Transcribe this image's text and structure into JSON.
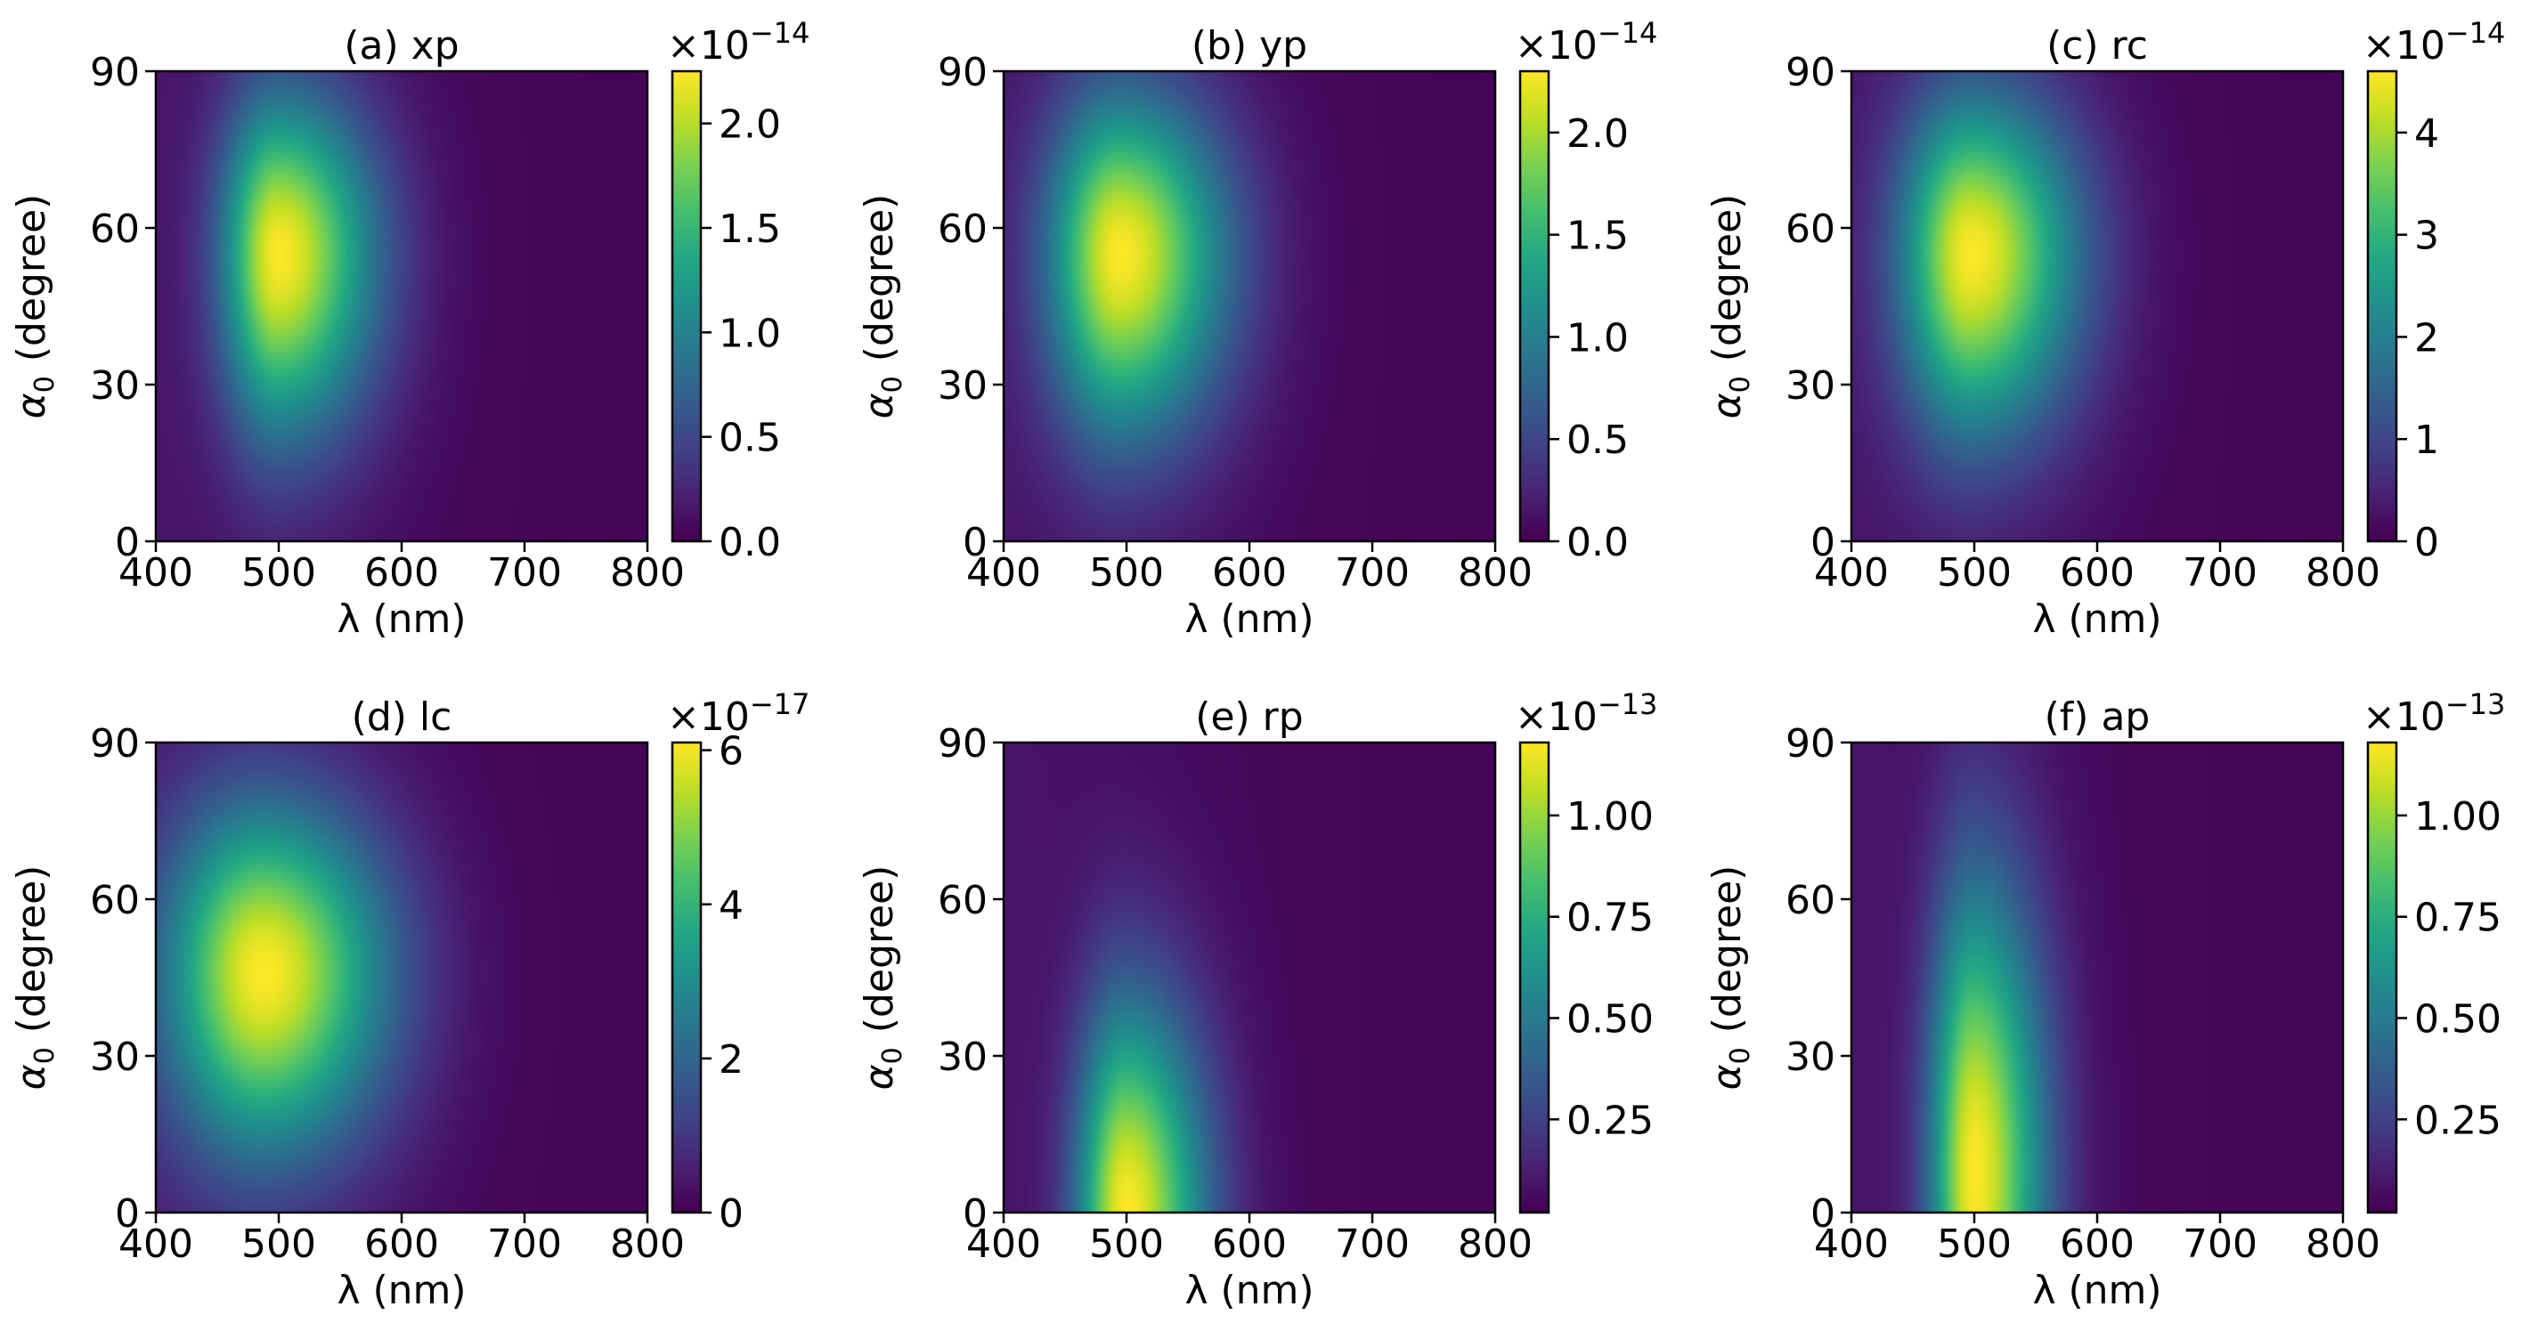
{
  "chart_data": [
    {
      "type": "heatmap",
      "title": "(a) xp",
      "xlabel": "λ (nm)",
      "ylabel_symbol": "α",
      "ylabel_subscript": "0",
      "ylabel_suffix": "(degree)",
      "xlim": [
        400,
        800
      ],
      "ylim": [
        0,
        90
      ],
      "xticks": [
        400,
        500,
        600,
        700,
        800
      ],
      "yticks": [
        0,
        30,
        60,
        90
      ],
      "xtick_labels": [
        "400",
        "500",
        "600",
        "700",
        "800"
      ],
      "ytick_labels": [
        "0",
        "30",
        "60",
        "90"
      ],
      "colorbar": {
        "multiplier_base": "×10",
        "multiplier_exponent": "−14",
        "range": [
          0,
          2.25
        ],
        "ticks": [
          0.0,
          0.5,
          1.0,
          1.5,
          2.0
        ],
        "tick_labels": [
          "0.0",
          "0.5",
          "1.0",
          "1.5",
          "2.0"
        ]
      },
      "peak": {
        "x": 500,
        "y": 55,
        "value": 2.25,
        "sigma_x_left": 32,
        "sigma_x_right": 55,
        "sigma_y_low": 24,
        "sigma_y_high": 21
      },
      "colormap": "viridis"
    },
    {
      "type": "heatmap",
      "title": "(b) yp",
      "xlabel": "λ (nm)",
      "ylabel_symbol": "α",
      "ylabel_subscript": "0",
      "ylabel_suffix": "(degree)",
      "xlim": [
        400,
        800
      ],
      "ylim": [
        0,
        90
      ],
      "xticks": [
        400,
        500,
        600,
        700,
        800
      ],
      "yticks": [
        0,
        30,
        60,
        90
      ],
      "xtick_labels": [
        "400",
        "500",
        "600",
        "700",
        "800"
      ],
      "ytick_labels": [
        "0",
        "30",
        "60",
        "90"
      ],
      "colorbar": {
        "multiplier_base": "×10",
        "multiplier_exponent": "−14",
        "range": [
          0,
          2.3
        ],
        "ticks": [
          0.0,
          0.5,
          1.0,
          1.5,
          2.0
        ],
        "tick_labels": [
          "0.0",
          "0.5",
          "1.0",
          "1.5",
          "2.0"
        ]
      },
      "peak": {
        "x": 495,
        "y": 55,
        "value": 2.3,
        "sigma_x_left": 40,
        "sigma_x_right": 60,
        "sigma_y_low": 24,
        "sigma_y_high": 21
      },
      "colormap": "viridis"
    },
    {
      "type": "heatmap",
      "title": "(c) rc",
      "xlabel": "λ (nm)",
      "ylabel_symbol": "α",
      "ylabel_subscript": "0",
      "ylabel_suffix": "(degree)",
      "xlim": [
        400,
        800
      ],
      "ylim": [
        0,
        90
      ],
      "xticks": [
        400,
        500,
        600,
        700,
        800
      ],
      "yticks": [
        0,
        30,
        60,
        90
      ],
      "xtick_labels": [
        "400",
        "500",
        "600",
        "700",
        "800"
      ],
      "ytick_labels": [
        "0",
        "30",
        "60",
        "90"
      ],
      "colorbar": {
        "multiplier_base": "×10",
        "multiplier_exponent": "−14",
        "range": [
          0,
          4.6
        ],
        "ticks": [
          0,
          1,
          2,
          3,
          4
        ],
        "tick_labels": [
          "0",
          "1",
          "2",
          "3",
          "4"
        ]
      },
      "peak": {
        "x": 498,
        "y": 55,
        "value": 4.6,
        "sigma_x_left": 40,
        "sigma_x_right": 60,
        "sigma_y_low": 24,
        "sigma_y_high": 21
      },
      "colormap": "viridis"
    },
    {
      "type": "heatmap",
      "title": "(d) lc",
      "xlabel": "λ (nm)",
      "ylabel_symbol": "α",
      "ylabel_subscript": "0",
      "ylabel_suffix": "(degree)",
      "xlim": [
        400,
        800
      ],
      "ylim": [
        0,
        90
      ],
      "xticks": [
        400,
        500,
        600,
        700,
        800
      ],
      "yticks": [
        0,
        30,
        60,
        90
      ],
      "xtick_labels": [
        "400",
        "500",
        "600",
        "700",
        "800"
      ],
      "ytick_labels": [
        "0",
        "30",
        "60",
        "90"
      ],
      "colorbar": {
        "multiplier_base": "×10",
        "multiplier_exponent": "−17",
        "range": [
          0,
          6.1
        ],
        "ticks": [
          0,
          2,
          4,
          6
        ],
        "tick_labels": [
          "0",
          "2",
          "4",
          "6"
        ]
      },
      "peak": {
        "x": 488,
        "y": 46,
        "value": 6.1,
        "sigma_x_left": 55,
        "sigma_x_right": 70,
        "sigma_y_low": 24,
        "sigma_y_high": 22
      },
      "colormap": "viridis"
    },
    {
      "type": "heatmap",
      "title": "(e) rp",
      "xlabel": "λ (nm)",
      "ylabel_symbol": "α",
      "ylabel_subscript": "0",
      "ylabel_suffix": "(degree)",
      "xlim": [
        400,
        800
      ],
      "ylim": [
        0,
        90
      ],
      "xticks": [
        400,
        500,
        600,
        700,
        800
      ],
      "yticks": [
        0,
        30,
        60,
        90
      ],
      "xtick_labels": [
        "400",
        "500",
        "600",
        "700",
        "800"
      ],
      "ytick_labels": [
        "0",
        "30",
        "60",
        "90"
      ],
      "colorbar": {
        "multiplier_base": "×10",
        "multiplier_exponent": "−13",
        "range": [
          0.02,
          1.18
        ],
        "ticks": [
          0.25,
          0.5,
          0.75,
          1.0
        ],
        "tick_labels": [
          "0.25",
          "0.50",
          "0.75",
          "1.00"
        ]
      },
      "peak": {
        "x": 500,
        "y": 0,
        "value": 1.18,
        "sigma_x_left": 28,
        "sigma_x_right": 45,
        "sigma_y_low": 30,
        "sigma_y_high": 28
      },
      "colormap": "viridis"
    },
    {
      "type": "heatmap",
      "title": "(f) ap",
      "xlabel": "λ (nm)",
      "ylabel_symbol": "α",
      "ylabel_subscript": "0",
      "ylabel_suffix": "(degree)",
      "xlim": [
        400,
        800
      ],
      "ylim": [
        0,
        90
      ],
      "xticks": [
        400,
        500,
        600,
        700,
        800
      ],
      "yticks": [
        0,
        30,
        60,
        90
      ],
      "xtick_labels": [
        "400",
        "500",
        "600",
        "700",
        "800"
      ],
      "ytick_labels": [
        "0",
        "30",
        "60",
        "90"
      ],
      "colorbar": {
        "multiplier_base": "×10",
        "multiplier_exponent": "−13",
        "range": [
          0.02,
          1.18
        ],
        "ticks": [
          0.25,
          0.5,
          0.75,
          1.0
        ],
        "tick_labels": [
          "0.25",
          "0.50",
          "0.75",
          "1.00"
        ]
      },
      "peak": {
        "x": 500,
        "y": 8,
        "value": 1.18,
        "sigma_x_left": 25,
        "sigma_x_right": 40,
        "sigma_y_low": 45,
        "sigma_y_high": 38
      },
      "colormap": "viridis"
    }
  ]
}
